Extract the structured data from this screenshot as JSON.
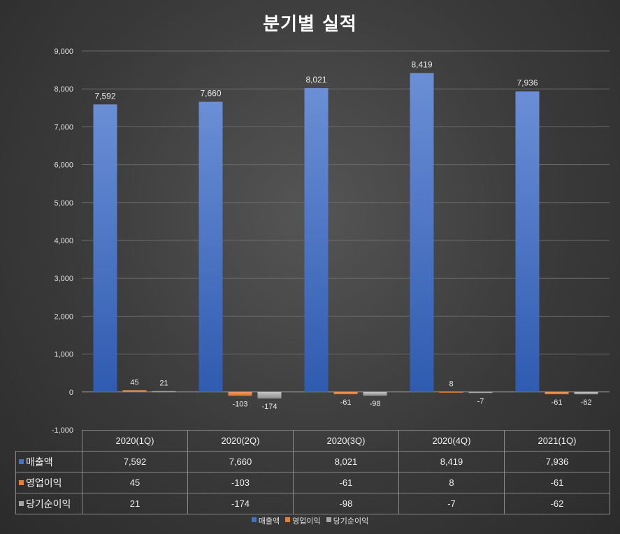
{
  "chart_data": {
    "type": "bar",
    "title": "분기별 실적",
    "categories": [
      "2020(1Q)",
      "2020(2Q)",
      "2020(3Q)",
      "2020(4Q)",
      "2021(1Q)"
    ],
    "series": [
      {
        "name": "매출액",
        "color": "#4472c4",
        "values": [
          7592,
          7660,
          8021,
          8419,
          7936
        ],
        "labels": [
          "7,592",
          "7,660",
          "8,021",
          "8,419",
          "7,936"
        ]
      },
      {
        "name": "영업이익",
        "color": "#ed7d31",
        "values": [
          45,
          -103,
          -61,
          8,
          -61
        ],
        "labels": [
          "45",
          "-103",
          "-61",
          "8",
          "-61"
        ]
      },
      {
        "name": "당기순이익",
        "color": "#a5a5a5",
        "values": [
          21,
          -174,
          -98,
          -7,
          -62
        ],
        "labels": [
          "21",
          "-174",
          "-98",
          "-7",
          "-62"
        ]
      }
    ],
    "ylim": [
      -1000,
      9000
    ],
    "yticks": [
      -1000,
      0,
      1000,
      2000,
      3000,
      4000,
      5000,
      6000,
      7000,
      8000,
      9000
    ],
    "ytick_labels": [
      "-1,000",
      "0",
      "1,000",
      "2,000",
      "3,000",
      "4,000",
      "5,000",
      "6,000",
      "7,000",
      "8,000",
      "9,000"
    ],
    "grid": true,
    "legend": "bottom",
    "data_table": true
  }
}
